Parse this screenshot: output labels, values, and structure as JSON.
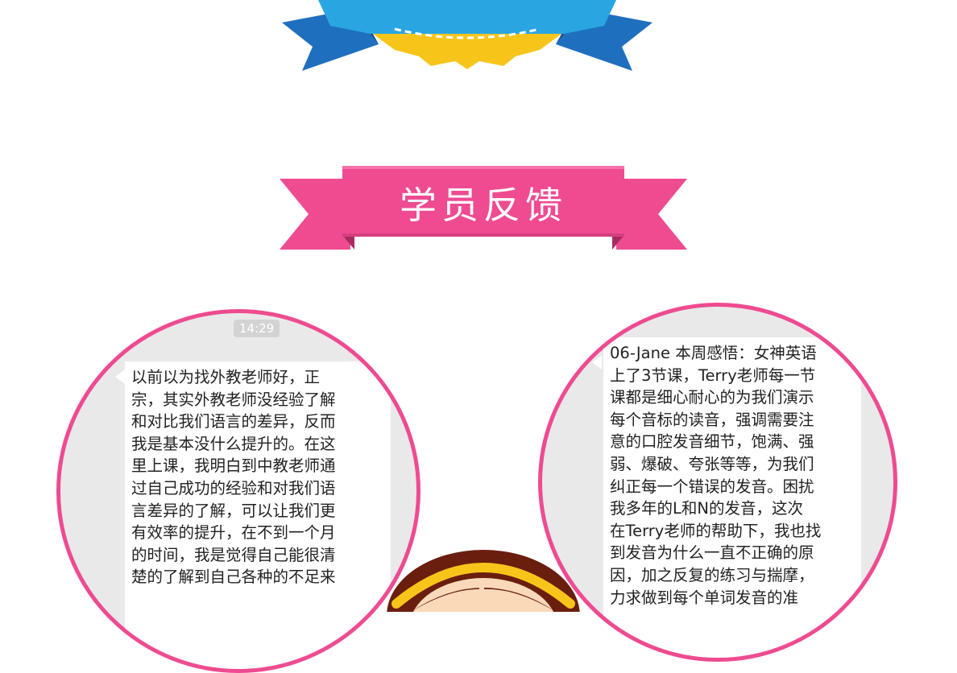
{
  "ribbon": {
    "title": "学员反馈"
  },
  "left_card": {
    "timestamp": "14:29",
    "lines": [
      "以前以为找外教老师好，正",
      "宗，其实外教老师没经验了解",
      "和对比我们语言的差异，反而",
      "我是基本没什么提升的。在这",
      "里上课，我明白到中教老师通",
      "过自己成功的经验和对我们语",
      "言差异的了解，可以让我们更",
      "有效率的提升，在不到一个月",
      "的时间，我是觉得自己能很清",
      "楚的了解到自己各种的不足来"
    ]
  },
  "right_card": {
    "lines": [
      "06-Jane 本周感悟：女神英语",
      "上了3节课，Terry老师每一节",
      "课都是细心耐心的为我们演示",
      "每个音标的读音，强调需要注",
      "意的口腔发音细节，饱满、强",
      "弱、爆破、夸张等等，为我们",
      "纠正每一个错误的发音。困扰",
      "我多年的L和N的发音，这次",
      "在Terry老师的帮助下，我也找",
      "到发音为什么一直不正确的原",
      "因，加之反复的练习与揣摩，",
      "力求做到每个单词发音的准"
    ]
  },
  "colors": {
    "pink": "#ee4b91",
    "ribbon_dark": "#c7356f",
    "blue": "#29a6e2",
    "blue_dark": "#1f6fbf",
    "gold": "#f7c51a"
  }
}
